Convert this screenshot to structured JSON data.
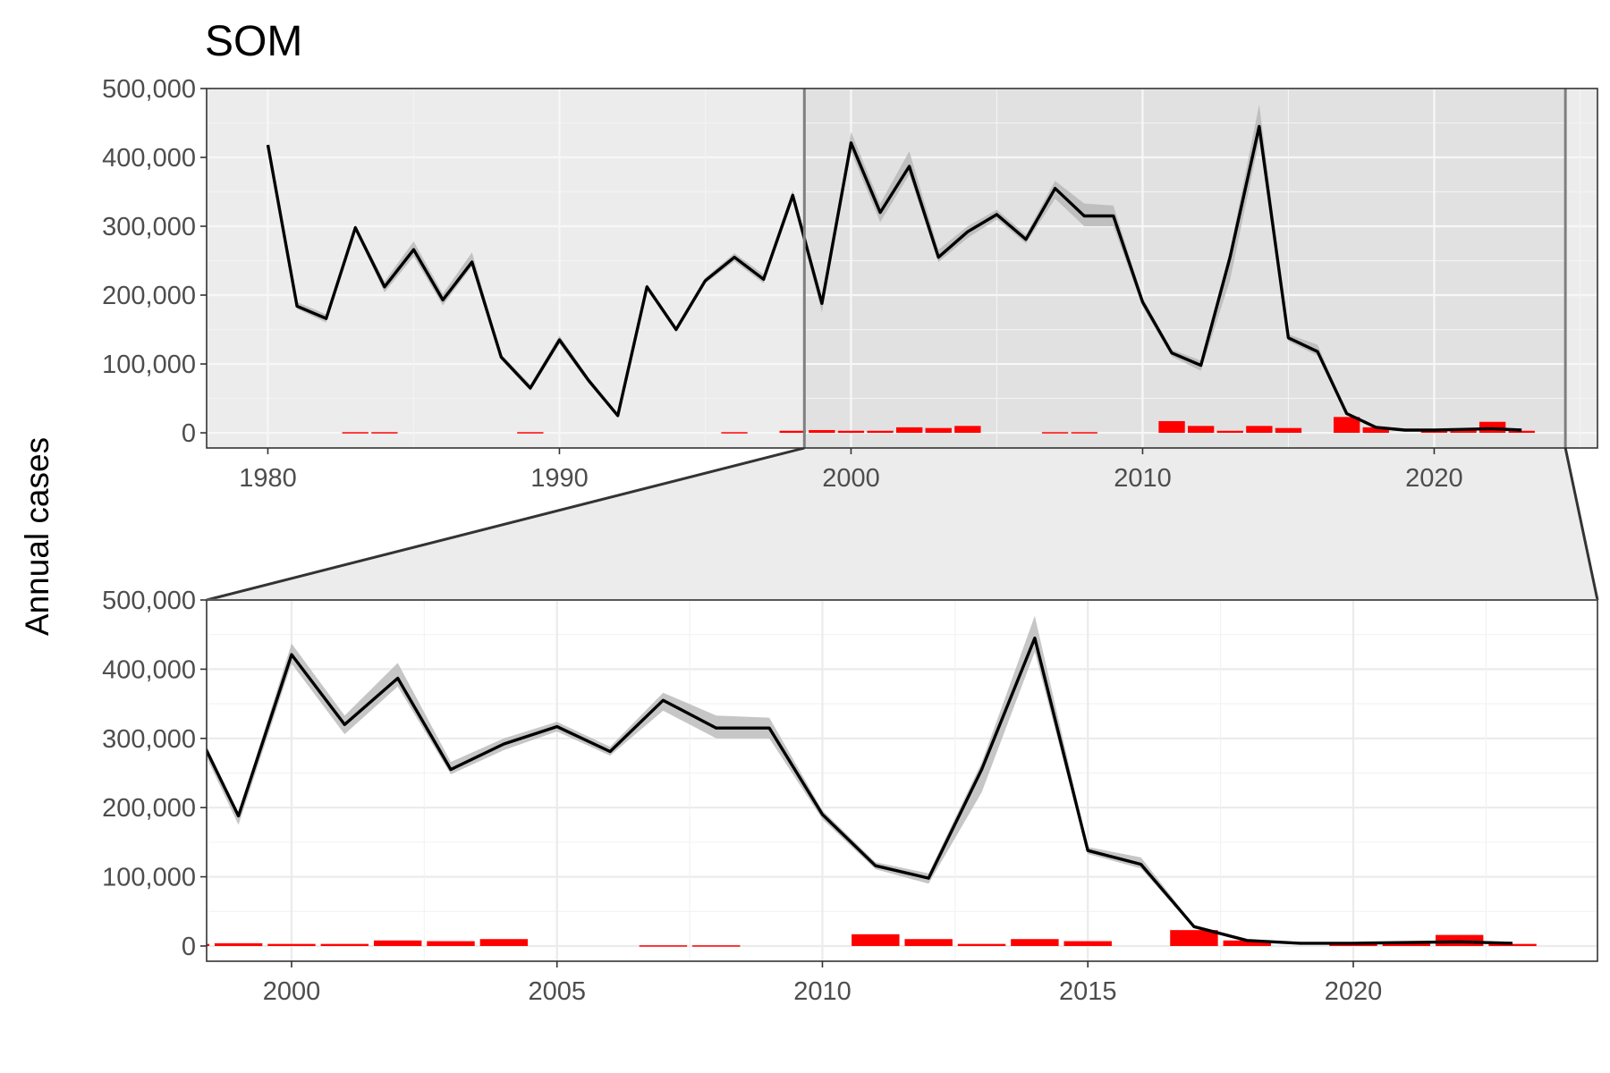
{
  "chart_data": {
    "type": "line",
    "title": "SOM",
    "ylabel": "Annual cases",
    "xlabel": "",
    "colors": {
      "line": "#000000",
      "ci_band": "#b3b3b3",
      "bars": "#ff0000",
      "zoom_region": "#d9d9d9"
    },
    "panels": [
      {
        "name": "overview",
        "xlim": [
          1977.9,
          2025.6
        ],
        "ylim": [
          -22000,
          500000
        ],
        "x_ticks": [
          1980,
          1990,
          2000,
          2010,
          2020
        ],
        "x_tick_labels": [
          "1980",
          "1990",
          "2000",
          "2010",
          "2020"
        ],
        "y_ticks": [
          0,
          100000,
          200000,
          300000,
          400000,
          500000
        ],
        "y_tick_labels": [
          "0",
          "100,000",
          "200,000",
          "300,000",
          "400,000",
          "500,000"
        ],
        "zoom_window": [
          1998.4,
          2024.5
        ],
        "grid": true
      },
      {
        "name": "zoom",
        "xlim": [
          1998.4,
          2024.6
        ],
        "ylim": [
          -22000,
          500000
        ],
        "x_ticks": [
          2000,
          2005,
          2010,
          2015,
          2020
        ],
        "x_tick_labels": [
          "2000",
          "2005",
          "2010",
          "2015",
          "2020"
        ],
        "y_ticks": [
          0,
          100000,
          200000,
          300000,
          400000,
          500000
        ],
        "y_tick_labels": [
          "0",
          "100,000",
          "200,000",
          "300,000",
          "400,000",
          "500,000"
        ],
        "grid": true
      }
    ],
    "series": [
      {
        "type": "line",
        "x": [
          1980,
          1981,
          1982,
          1983,
          1984,
          1985,
          1986,
          1987,
          1988,
          1989,
          1990,
          1991,
          1992,
          1993,
          1994,
          1995,
          1996,
          1997,
          1998,
          1999,
          2000,
          2001,
          2002,
          2003,
          2004,
          2005,
          2006,
          2007,
          2008,
          2009,
          2010,
          2011,
          2012,
          2013,
          2014,
          2015,
          2016,
          2017,
          2018,
          2019,
          2020,
          2021,
          2022,
          2023
        ],
        "values": [
          418000,
          184000,
          166000,
          298000,
          212000,
          266000,
          193000,
          248000,
          110000,
          65000,
          135000,
          76000,
          25000,
          212000,
          150000,
          221000,
          255000,
          223000,
          345000,
          188000,
          421000,
          320000,
          387000,
          255000,
          292000,
          317000,
          281000,
          355000,
          315000,
          315000,
          190000,
          116000,
          98000,
          255000,
          445000,
          138000,
          118000,
          28000,
          8000,
          4000,
          4000,
          5000,
          6000,
          4000
        ],
        "lower": [
          418000,
          180000,
          160000,
          294000,
          204000,
          256000,
          185000,
          242000,
          106000,
          61000,
          129000,
          72000,
          23000,
          208000,
          146000,
          217000,
          249000,
          217000,
          337000,
          175000,
          408000,
          306000,
          375000,
          248000,
          283000,
          310000,
          275000,
          340000,
          300000,
          300000,
          183000,
          111000,
          90000,
          222000,
          425000,
          133000,
          112000,
          26000,
          7000,
          3500,
          3500,
          4500,
          5500,
          3500
        ],
        "upper": [
          418000,
          190000,
          172000,
          302000,
          220000,
          278000,
          202000,
          262000,
          114000,
          70000,
          141000,
          80000,
          27000,
          216000,
          154000,
          225000,
          261000,
          230000,
          352000,
          192000,
          437000,
          333000,
          409000,
          266000,
          300000,
          324000,
          288000,
          366000,
          333000,
          330000,
          196000,
          121000,
          105000,
          265000,
          477000,
          143000,
          128000,
          30000,
          9000,
          4500,
          4500,
          5500,
          6500,
          4500
        ]
      },
      {
        "type": "bar",
        "x": [
          1983,
          1984,
          1989,
          1996,
          1998,
          1999,
          2000,
          2001,
          2002,
          2003,
          2004,
          2007,
          2008,
          2011,
          2012,
          2013,
          2014,
          2015,
          2017,
          2018,
          2020,
          2021,
          2022,
          2023
        ],
        "values": [
          1000,
          1000,
          1000,
          1000,
          3000,
          4000,
          3000,
          3000,
          8000,
          7000,
          10000,
          1000,
          1000,
          17000,
          10000,
          3000,
          10000,
          7000,
          23000,
          8000,
          3000,
          6000,
          16000,
          3000
        ]
      }
    ]
  }
}
